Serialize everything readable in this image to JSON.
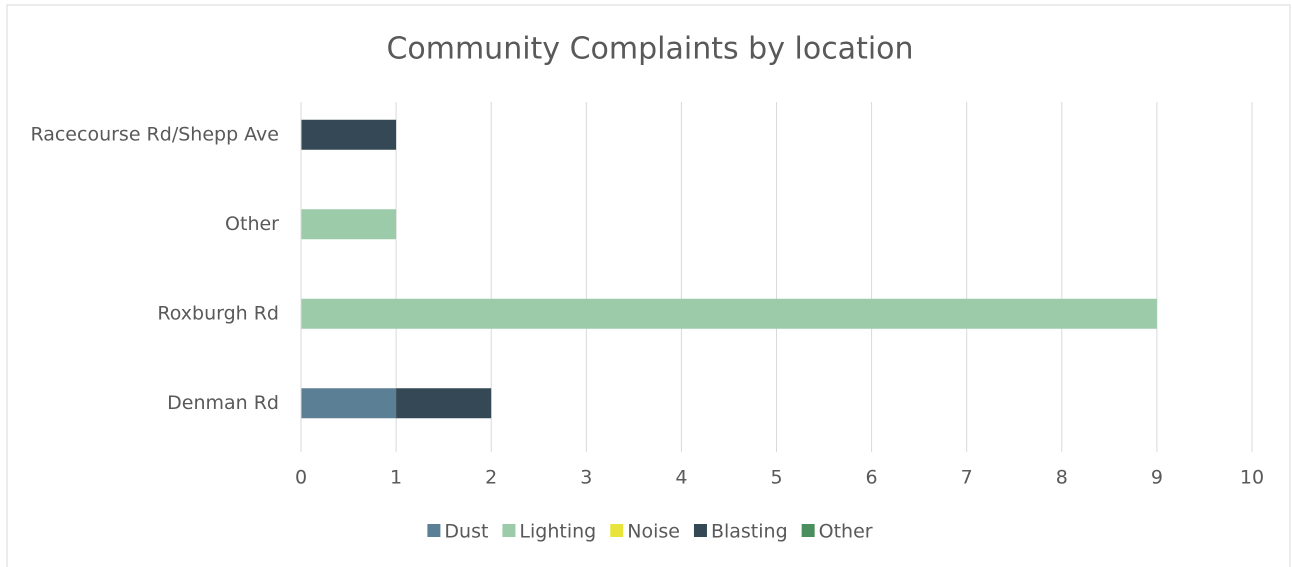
{
  "chart_data": {
    "type": "bar",
    "orientation": "horizontal",
    "stacked": true,
    "title": "Community Complaints by location",
    "categories": [
      "Denman Rd",
      "Roxburgh Rd",
      "Other",
      "Racecourse Rd/Shepp Ave"
    ],
    "series": [
      {
        "name": "Dust",
        "color": "#5b7f95",
        "values": [
          1,
          0,
          0,
          0
        ]
      },
      {
        "name": "Lighting",
        "color": "#9ccbaa",
        "values": [
          0,
          9,
          1,
          0
        ]
      },
      {
        "name": "Noise",
        "color": "#e8e43c",
        "values": [
          0,
          0,
          0,
          0
        ]
      },
      {
        "name": "Blasting",
        "color": "#344955",
        "values": [
          1,
          0,
          0,
          1
        ]
      },
      {
        "name": "Other",
        "color": "#4a8f5e",
        "values": [
          0,
          0,
          0,
          0
        ]
      }
    ],
    "xlim": [
      0,
      10
    ],
    "xticks": [
      0,
      1,
      2,
      3,
      4,
      5,
      6,
      7,
      8,
      9,
      10
    ],
    "grid": true,
    "legend": "bottom"
  }
}
